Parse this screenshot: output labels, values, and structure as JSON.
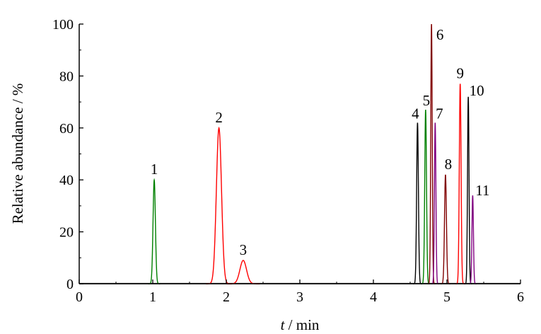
{
  "chart_data": {
    "type": "line",
    "title": "",
    "xlabel_var": "t",
    "xlabel_unit": " / min",
    "ylabel": "Relative abundance / %",
    "xlim": [
      0,
      6
    ],
    "ylim": [
      0,
      100
    ],
    "x_ticks": [
      0,
      1,
      2,
      3,
      4,
      5,
      6
    ],
    "y_ticks": [
      0,
      20,
      40,
      60,
      80,
      100
    ],
    "grid": false,
    "legend": "none",
    "peaks": [
      {
        "label": "1",
        "rt": 1.02,
        "height": 40,
        "width": 0.016,
        "color": "#008000"
      },
      {
        "label": "2",
        "rt": 1.9,
        "height": 60,
        "width": 0.035,
        "color": "#ff0000"
      },
      {
        "label": "3",
        "rt": 2.23,
        "height": 9,
        "width": 0.045,
        "color": "#ff0000"
      },
      {
        "label": "4",
        "rt": 4.6,
        "height": 62,
        "width": 0.012,
        "color": "#000000"
      },
      {
        "label": "5",
        "rt": 4.71,
        "height": 67,
        "width": 0.012,
        "color": "#008000"
      },
      {
        "label": "6",
        "rt": 4.79,
        "height": 100,
        "width": 0.01,
        "color": "#800000"
      },
      {
        "label": "7",
        "rt": 4.84,
        "height": 62,
        "width": 0.01,
        "color": "#800080"
      },
      {
        "label": "8",
        "rt": 4.98,
        "height": 42,
        "width": 0.013,
        "color": "#800000"
      },
      {
        "label": "9",
        "rt": 5.18,
        "height": 77,
        "width": 0.012,
        "color": "#ff0000"
      },
      {
        "label": "10",
        "rt": 5.29,
        "height": 72,
        "width": 0.01,
        "color": "#000000"
      },
      {
        "label": "11",
        "rt": 5.35,
        "height": 34,
        "width": 0.01,
        "color": "#800080"
      }
    ]
  }
}
